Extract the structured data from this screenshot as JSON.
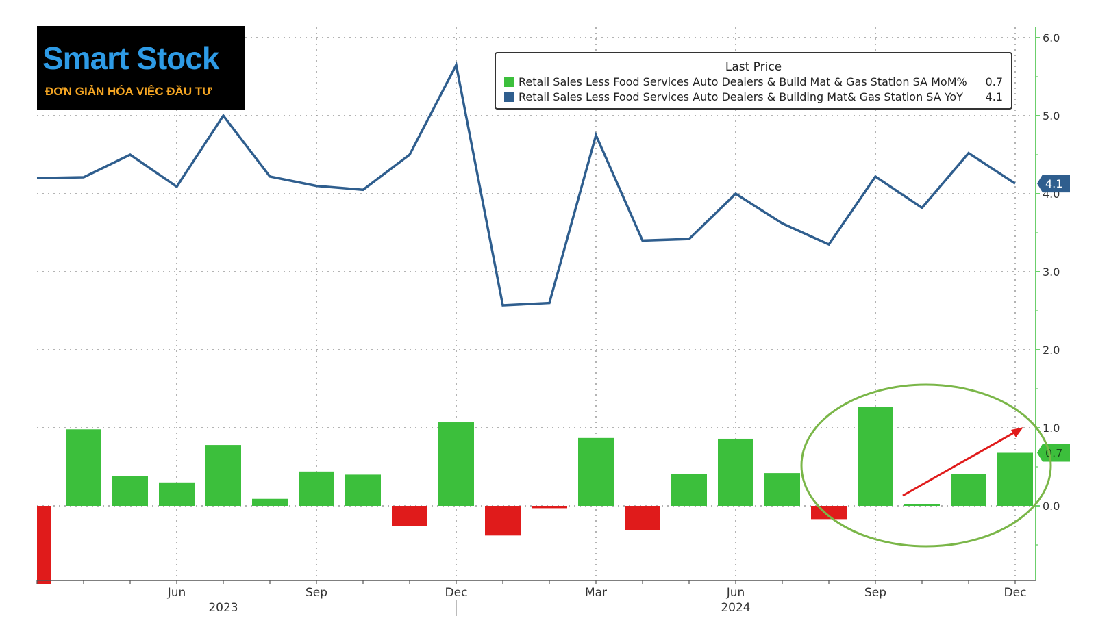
{
  "logo": {
    "title": "Smart Stock",
    "subtitle": "ĐƠN GIẢN HÓA VIỆC ĐẦU TƯ"
  },
  "legend": {
    "title": "Last Price",
    "items": [
      {
        "label": "Retail Sales Less Food Services Auto Dealers & Build Mat & Gas Station SA MoM%",
        "value": "0.7",
        "color": "#3cbf3c"
      },
      {
        "label": "Retail Sales Less Food Services Auto Dealers & Building Mat& Gas Station SA YoY",
        "value": "4.1",
        "color": "#2f5e8e"
      }
    ]
  },
  "colors": {
    "bar_positive": "#3cbf3c",
    "bar_negative": "#e01b1b",
    "line": "#2f5e8e",
    "axis": "#3cbf3c",
    "annotation_ellipse": "#7ab648",
    "annotation_arrow": "#e01b1b"
  },
  "chart_data": {
    "type": "bar",
    "ylim": [
      -0.95,
      6.0
    ],
    "y_ticks": [
      6.0,
      5.0,
      4.0,
      3.0,
      2.0,
      1.0,
      0.0
    ],
    "y_tick_labels": [
      "6.0",
      "5.0",
      "4.0",
      "3.0",
      "2.0",
      "1.0",
      "0.0"
    ],
    "grid": true,
    "legend_position": "top-right",
    "x": [
      "2023-03",
      "2023-04",
      "2023-05",
      "2023-06",
      "2023-07",
      "2023-08",
      "2023-09",
      "2023-10",
      "2023-11",
      "2023-12",
      "2024-01",
      "2024-02",
      "2024-03",
      "2024-04",
      "2024-05",
      "2024-06",
      "2024-07",
      "2024-08",
      "2024-09",
      "2024-10",
      "2024-11",
      "2024-12"
    ],
    "x_tick_labels": [
      {
        "x": "2023-06",
        "label": "Jun"
      },
      {
        "x": "2023-09",
        "label": "Sep"
      },
      {
        "x": "2023-12",
        "label": "Dec"
      },
      {
        "x": "2024-03",
        "label": "Mar"
      },
      {
        "x": "2024-06",
        "label": "Jun"
      },
      {
        "x": "2024-09",
        "label": "Sep"
      },
      {
        "x": "2024-12",
        "label": "Dec"
      }
    ],
    "year_labels": [
      {
        "x": "2023-07",
        "label": "2023"
      },
      {
        "x": "2024-06",
        "label": "2024"
      }
    ],
    "series": [
      {
        "name": "Retail Sales Less Food Services Auto Dealers & Build Mat & Gas Station SA MoM%",
        "type": "bar",
        "values": [
          -1.0,
          0.98,
          0.38,
          0.3,
          0.78,
          0.09,
          0.44,
          0.4,
          -0.26,
          1.07,
          -0.38,
          -0.03,
          0.87,
          -0.31,
          0.41,
          0.86,
          0.42,
          -0.17,
          1.27,
          0.02,
          0.41,
          0.68
        ],
        "last_value": "0.7"
      },
      {
        "name": "Retail Sales Less Food Services Auto Dealers & Building Mat& Gas Station SA YoY",
        "type": "line",
        "values": [
          4.2,
          4.21,
          4.5,
          4.09,
          5.0,
          4.22,
          4.1,
          4.05,
          4.5,
          5.65,
          2.57,
          2.6,
          4.75,
          3.4,
          3.42,
          4.0,
          3.62,
          3.35,
          4.22,
          3.82,
          4.52,
          4.13
        ],
        "last_value": "4.1"
      }
    ]
  }
}
